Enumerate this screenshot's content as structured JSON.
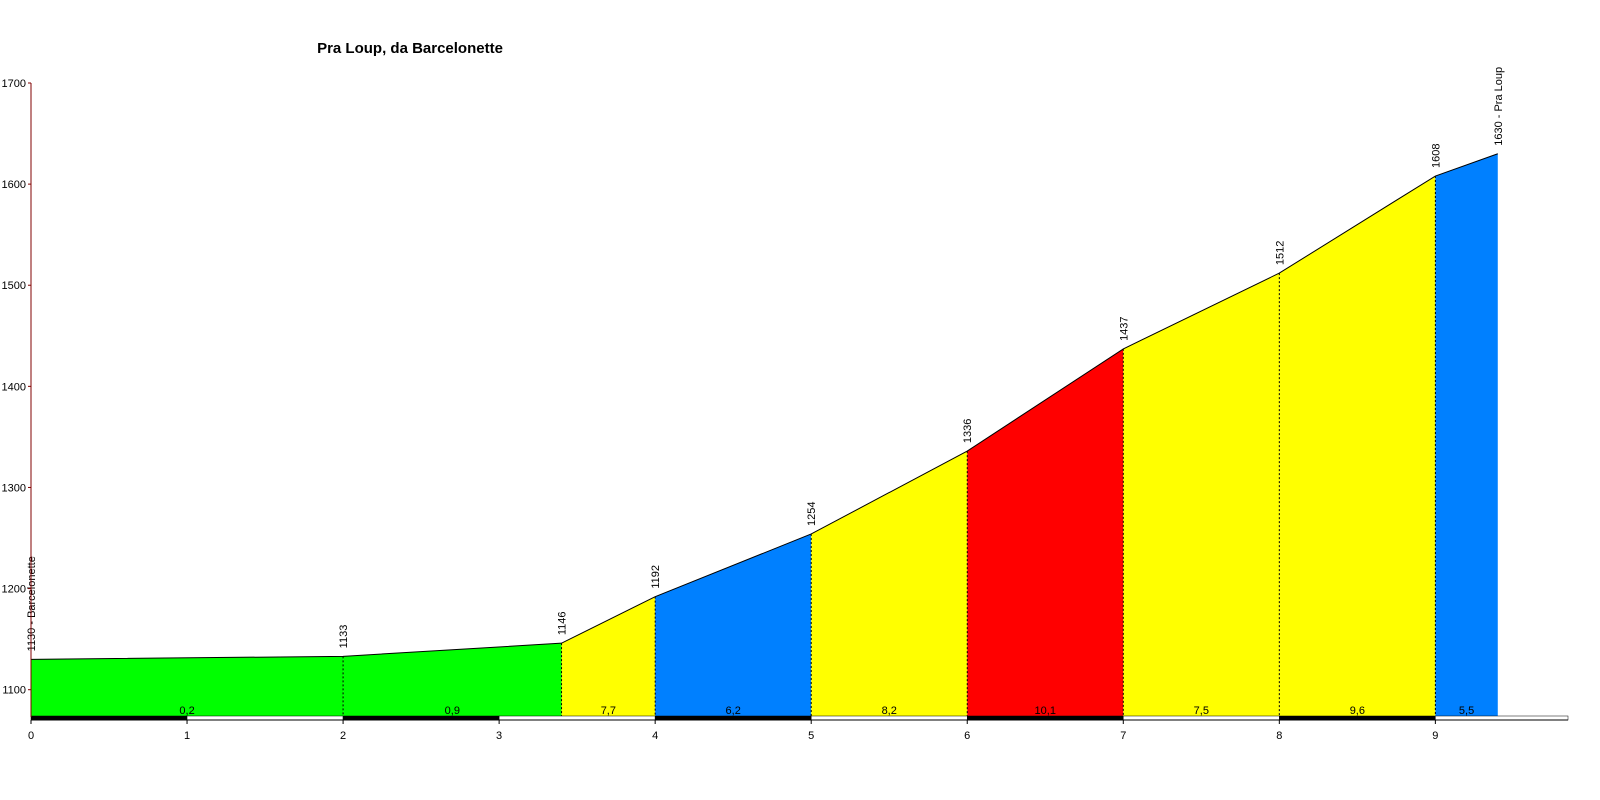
{
  "chart_data": {
    "type": "elevation-profile",
    "title": "Pra Loup, da Barcelonette",
    "x": [
      0,
      2,
      3.4,
      4,
      5,
      6,
      7,
      8,
      9,
      9.4
    ],
    "values": [
      1130,
      1133,
      1146,
      1192,
      1254,
      1336,
      1437,
      1512,
      1608,
      1630
    ],
    "value_labels": [
      "1130 - Barcelonette",
      "1133",
      "1146",
      "1192",
      "1254",
      "1336",
      "1437",
      "1512",
      "1608",
      "1630 - Pra Loup"
    ],
    "gradients": {
      "values": [
        0.2,
        0.9,
        7.7,
        6.2,
        8.2,
        10.1,
        7.5,
        9.6,
        5.5
      ],
      "value_labels": [
        "0,2",
        "0,9",
        "7,7",
        "6,2",
        "8,2",
        "10,1",
        "7,5",
        "9,6",
        "5,5"
      ],
      "colors": [
        "#00ff00",
        "#00ff00",
        "#ffff00",
        "#0080ff",
        "#ffff00",
        "#ff0000",
        "#ffff00",
        "#ffff00",
        "#0080ff"
      ]
    },
    "xlim": [
      0,
      9.85
    ],
    "ylim": [
      1073,
      1700
    ],
    "xticks": [
      0,
      1,
      2,
      3,
      4,
      5,
      6,
      7,
      8,
      9
    ],
    "yticks": [
      1100,
      1200,
      1300,
      1400,
      1500,
      1600,
      1700
    ]
  }
}
